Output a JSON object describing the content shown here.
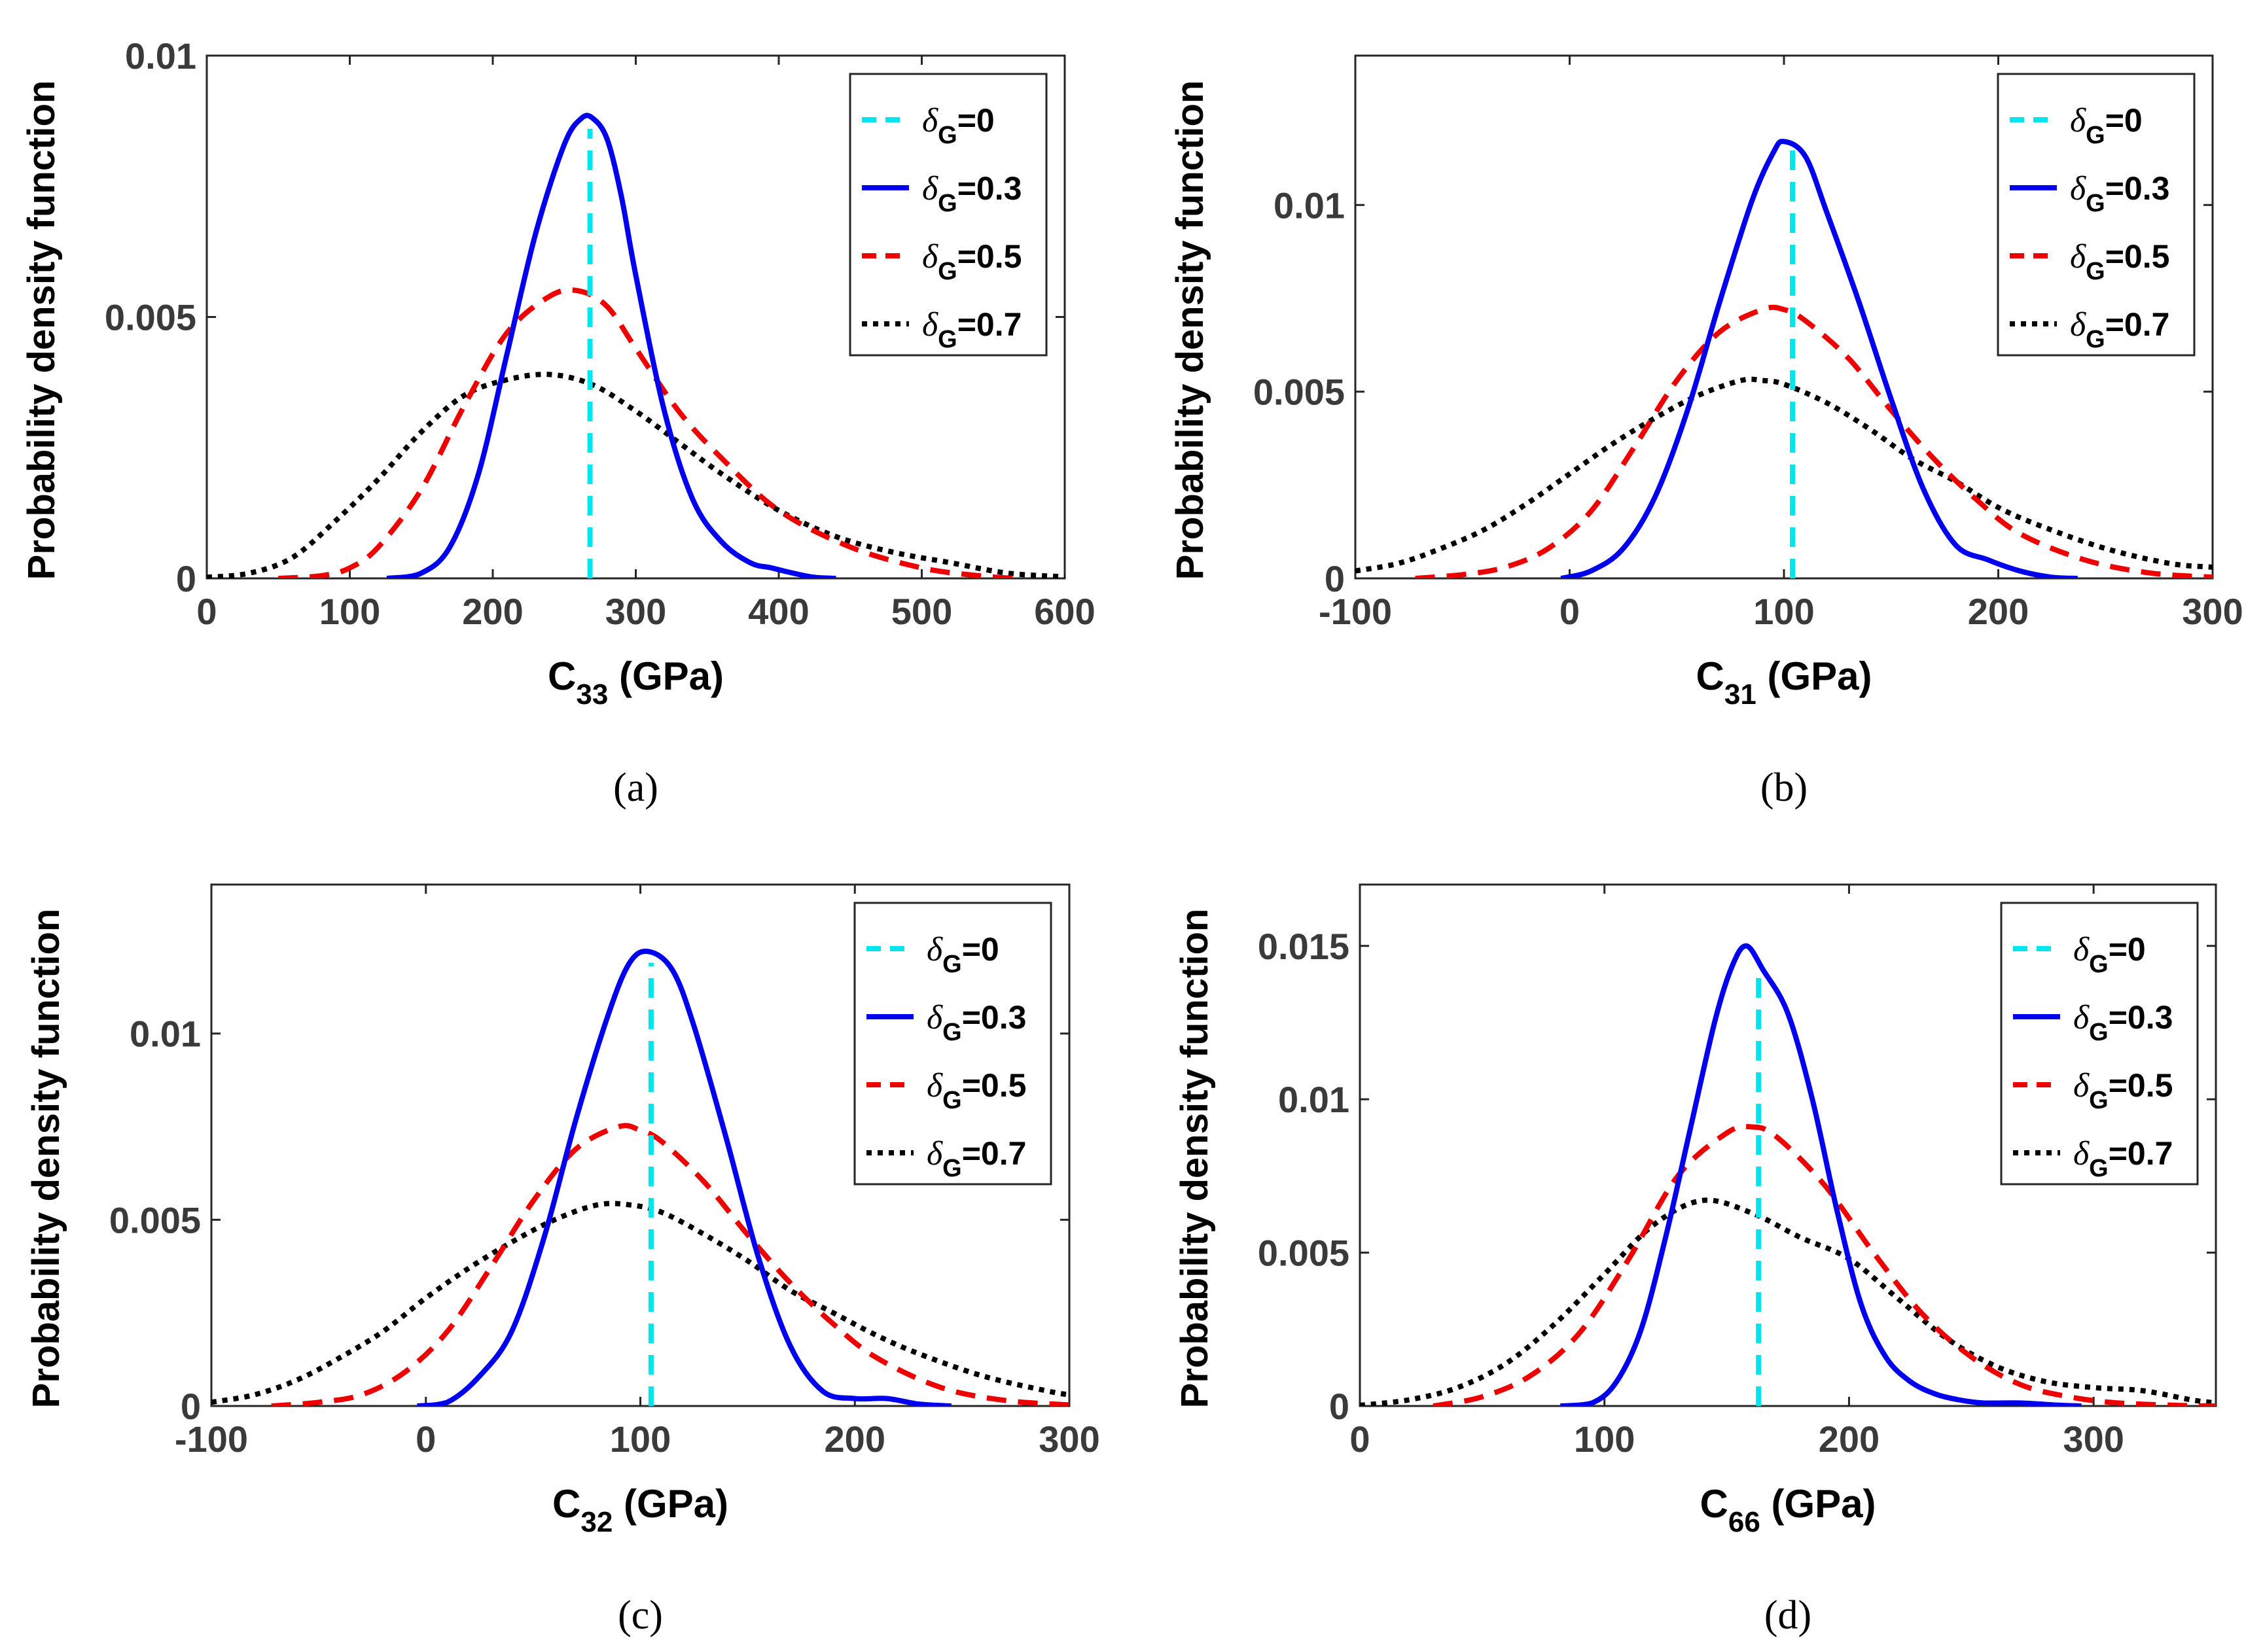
{
  "figure": {
    "type": "multi-panel line chart"
  },
  "colors": {
    "d0": "#00e5ee",
    "d03": "#0000ee",
    "d05": "#ee0000",
    "d07": "#000000"
  },
  "chart_data": [
    {
      "type": "line",
      "id": "a",
      "caption": "(a)",
      "ylabel": "Probability density function",
      "xlabel_main": "C",
      "xlabel_sub": "33",
      "xlabel_unit": " (GPa)",
      "xlim": [
        0,
        600
      ],
      "ylim": [
        0,
        0.01
      ],
      "xticks": [
        0,
        100,
        200,
        300,
        400,
        500,
        600
      ],
      "yticks": [
        0,
        0.005,
        0.01
      ],
      "ytick_labels": [
        "0",
        "0.005",
        "0.01"
      ],
      "legend": [
        "δG=0",
        "δG=0.3",
        "δG=0.5",
        "δG=0.7"
      ],
      "series": [
        {
          "name": "δG=0",
          "style": "dashed",
          "color": "#00e5ee",
          "x": [
            268,
            268
          ],
          "y": [
            0,
            0.0086
          ]
        },
        {
          "name": "δG=0.3",
          "style": "solid",
          "color": "#0000ee",
          "x": [
            126,
            150,
            170,
            190,
            210,
            230,
            250,
            262,
            270,
            280,
            290,
            300,
            320,
            340,
            360,
            380,
            395,
            410,
            425,
            440
          ],
          "y": [
            0,
            0.0001,
            0.0006,
            0.002,
            0.0043,
            0.0066,
            0.0083,
            0.0088,
            0.0088,
            0.0084,
            0.0073,
            0.0058,
            0.0032,
            0.0015,
            0.0007,
            0.0003,
            0.0002,
            0.0001,
            2e-05,
            0
          ]
        },
        {
          "name": "δG=0.5",
          "style": "dashed",
          "color": "#ee0000",
          "x": [
            50,
            80,
            100,
            120,
            150,
            180,
            210,
            240,
            260,
            280,
            300,
            330,
            360,
            400,
            450,
            500,
            540,
            565
          ],
          "y": [
            0,
            5e-05,
            0.0002,
            0.0006,
            0.0017,
            0.0033,
            0.0047,
            0.0054,
            0.0055,
            0.0052,
            0.0044,
            0.0032,
            0.0023,
            0.0013,
            0.0006,
            0.0002,
            5e-05,
            0
          ]
        },
        {
          "name": "δG=0.7",
          "style": "dotted",
          "color": "#000000",
          "x": [
            0,
            30,
            60,
            90,
            120,
            150,
            180,
            210,
            240,
            270,
            300,
            330,
            360,
            400,
            440,
            480,
            520,
            560,
            600
          ],
          "y": [
            2e-05,
            0.0001,
            0.0004,
            0.0011,
            0.0019,
            0.0028,
            0.0035,
            0.0038,
            0.0039,
            0.0037,
            0.0032,
            0.0026,
            0.002,
            0.0013,
            0.0008,
            0.0005,
            0.0003,
            0.0001,
            3e-05
          ]
        }
      ]
    },
    {
      "type": "line",
      "id": "b",
      "caption": "(b)",
      "ylabel": "Probability density function",
      "xlabel_main": "C",
      "xlabel_sub": "31",
      "xlabel_unit": " (GPa)",
      "xlim": [
        -100,
        300
      ],
      "ylim": [
        0,
        0.014
      ],
      "xticks": [
        -100,
        0,
        100,
        200,
        300
      ],
      "yticks": [
        0,
        0.005,
        0.01
      ],
      "ytick_labels": [
        "0",
        "0.005",
        "0.01"
      ],
      "legend": [
        "δG=0",
        "δG=0.3",
        "δG=0.5",
        "δG=0.7"
      ],
      "series": [
        {
          "name": "δG=0",
          "style": "dashed",
          "color": "#00e5ee",
          "x": [
            104,
            104
          ],
          "y": [
            0,
            0.0116
          ]
        },
        {
          "name": "δG=0.3",
          "style": "solid",
          "color": "#0000ee",
          "x": [
            -4,
            10,
            25,
            40,
            55,
            70,
            85,
            95,
            100,
            110,
            120,
            135,
            150,
            165,
            180,
            195,
            210,
            225,
            237
          ],
          "y": [
            0,
            0.0002,
            0.0008,
            0.0022,
            0.0045,
            0.0074,
            0.0101,
            0.0114,
            0.0117,
            0.0113,
            0.0098,
            0.0074,
            0.0048,
            0.0024,
            0.0009,
            0.0005,
            0.0002,
            3e-05,
            0
          ]
        },
        {
          "name": "δG=0.5",
          "style": "dashed",
          "color": "#ee0000",
          "x": [
            -72,
            -50,
            -30,
            -10,
            10,
            30,
            50,
            70,
            90,
            100,
            110,
            130,
            150,
            170,
            190,
            210,
            240,
            270,
            300
          ],
          "y": [
            0,
            0.0001,
            0.0003,
            0.0008,
            0.0018,
            0.0035,
            0.0053,
            0.0066,
            0.0072,
            0.0072,
            0.0069,
            0.0059,
            0.0045,
            0.0032,
            0.0021,
            0.0012,
            0.0005,
            0.00015,
            3e-05
          ]
        },
        {
          "name": "δG=0.7",
          "style": "dotted",
          "color": "#000000",
          "x": [
            -100,
            -80,
            -60,
            -40,
            -20,
            0,
            20,
            40,
            60,
            80,
            90,
            100,
            120,
            140,
            160,
            180,
            200,
            220,
            250,
            280,
            300
          ],
          "y": [
            0.0002,
            0.0004,
            0.0008,
            0.0013,
            0.002,
            0.0028,
            0.0036,
            0.0043,
            0.0049,
            0.0053,
            0.0053,
            0.0052,
            0.0047,
            0.004,
            0.0032,
            0.0026,
            0.0019,
            0.0014,
            0.0008,
            0.0004,
            0.0003
          ]
        }
      ]
    },
    {
      "type": "line",
      "id": "c",
      "caption": "(c)",
      "ylabel": "Probability density function",
      "xlabel_main": "C",
      "xlabel_sub": "32",
      "xlabel_unit": " (GPa)",
      "xlim": [
        -100,
        300
      ],
      "ylim": [
        0,
        0.014
      ],
      "xticks": [
        -100,
        0,
        100,
        200,
        300
      ],
      "yticks": [
        0,
        0.005,
        0.01
      ],
      "ytick_labels": [
        "0",
        "0.005",
        "0.01"
      ],
      "legend": [
        "δG=0",
        "δG=0.3",
        "δG=0.5",
        "δG=0.7"
      ],
      "series": [
        {
          "name": "δG=0",
          "style": "dashed",
          "color": "#00e5ee",
          "x": [
            105,
            105
          ],
          "y": [
            0,
            0.0119
          ]
        },
        {
          "name": "δG=0.3",
          "style": "solid",
          "color": "#0000ee",
          "x": [
            -4,
            10,
            25,
            40,
            55,
            70,
            85,
            95,
            104,
            115,
            125,
            140,
            155,
            170,
            185,
            200,
            215,
            230,
            245
          ],
          "y": [
            0,
            0.0001,
            0.0008,
            0.002,
            0.0045,
            0.0077,
            0.0105,
            0.0119,
            0.0122,
            0.0117,
            0.0102,
            0.0072,
            0.004,
            0.0016,
            0.0004,
            0.0002,
            0.0002,
            5e-05,
            0
          ]
        },
        {
          "name": "δG=0.5",
          "style": "dashed",
          "color": "#ee0000",
          "x": [
            -72,
            -50,
            -30,
            -10,
            10,
            30,
            50,
            70,
            90,
            100,
            110,
            130,
            150,
            170,
            190,
            210,
            240,
            270,
            300
          ],
          "y": [
            0,
            0.0001,
            0.0003,
            0.0009,
            0.002,
            0.0037,
            0.0055,
            0.0069,
            0.0075,
            0.0074,
            0.0071,
            0.006,
            0.0046,
            0.0033,
            0.0022,
            0.0013,
            0.0005,
            0.00015,
            3e-05
          ]
        },
        {
          "name": "δG=0.7",
          "style": "dotted",
          "color": "#000000",
          "x": [
            -100,
            -80,
            -60,
            -40,
            -20,
            0,
            20,
            40,
            60,
            80,
            95,
            110,
            130,
            150,
            170,
            190,
            210,
            230,
            260,
            290,
            300
          ],
          "y": [
            0.0001,
            0.0003,
            0.0007,
            0.0013,
            0.002,
            0.0029,
            0.0037,
            0.0044,
            0.005,
            0.0054,
            0.0054,
            0.0052,
            0.0046,
            0.0039,
            0.0031,
            0.0025,
            0.0019,
            0.0014,
            0.0008,
            0.0004,
            0.0003
          ]
        }
      ]
    },
    {
      "type": "line",
      "id": "d",
      "caption": "(d)",
      "ylabel": "Probability density function",
      "xlabel_main": "C",
      "xlabel_sub": "66",
      "xlabel_unit": " (GPa)",
      "xlim": [
        0,
        350
      ],
      "ylim": [
        0,
        0.017
      ],
      "xticks": [
        0,
        100,
        200,
        300
      ],
      "yticks": [
        0,
        0.005,
        0.01,
        0.015
      ],
      "ytick_labels": [
        "0",
        "0.005",
        "0.01",
        "0.015"
      ],
      "legend": [
        "δG=0",
        "δG=0.3",
        "δG=0.5",
        "δG=0.7"
      ],
      "series": [
        {
          "name": "δG=0",
          "style": "dashed",
          "color": "#00e5ee",
          "x": [
            163,
            163
          ],
          "y": [
            0,
            0.0142
          ]
        },
        {
          "name": "δG=0.3",
          "style": "solid",
          "color": "#0000ee",
          "x": [
            82,
            95,
            105,
            115,
            125,
            135,
            145,
            152,
            158,
            165,
            175,
            185,
            195,
            205,
            215,
            225,
            235,
            245,
            255,
            270,
            285,
            295
          ],
          "y": [
            0,
            0.0001,
            0.0008,
            0.0025,
            0.0055,
            0.009,
            0.0125,
            0.0143,
            0.015,
            0.0142,
            0.0128,
            0.01,
            0.0064,
            0.0033,
            0.0016,
            0.0008,
            0.0004,
            0.0002,
            0.0001,
            0.0001,
            3e-05,
            0
          ]
        },
        {
          "name": "δG=0.5",
          "style": "dashed",
          "color": "#ee0000",
          "x": [
            30,
            50,
            70,
            90,
            110,
            130,
            150,
            160,
            170,
            190,
            210,
            230,
            250,
            270,
            290,
            310,
            335,
            350
          ],
          "y": [
            0,
            0.0003,
            0.001,
            0.0024,
            0.0048,
            0.0075,
            0.0089,
            0.0091,
            0.0088,
            0.0072,
            0.005,
            0.003,
            0.0016,
            0.0007,
            0.0003,
            0.0001,
            2e-05,
            0
          ]
        },
        {
          "name": "δG=0.7",
          "style": "dotted",
          "color": "#000000",
          "x": [
            0,
            20,
            40,
            60,
            80,
            100,
            120,
            140,
            160,
            180,
            200,
            220,
            240,
            260,
            280,
            300,
            320,
            340,
            350
          ],
          "y": [
            2e-05,
            0.0002,
            0.0006,
            0.0014,
            0.0027,
            0.0043,
            0.0059,
            0.0067,
            0.0063,
            0.0055,
            0.0048,
            0.0035,
            0.0022,
            0.0013,
            0.0008,
            0.0006,
            0.0005,
            0.0002,
            0.0001
          ]
        }
      ]
    }
  ]
}
